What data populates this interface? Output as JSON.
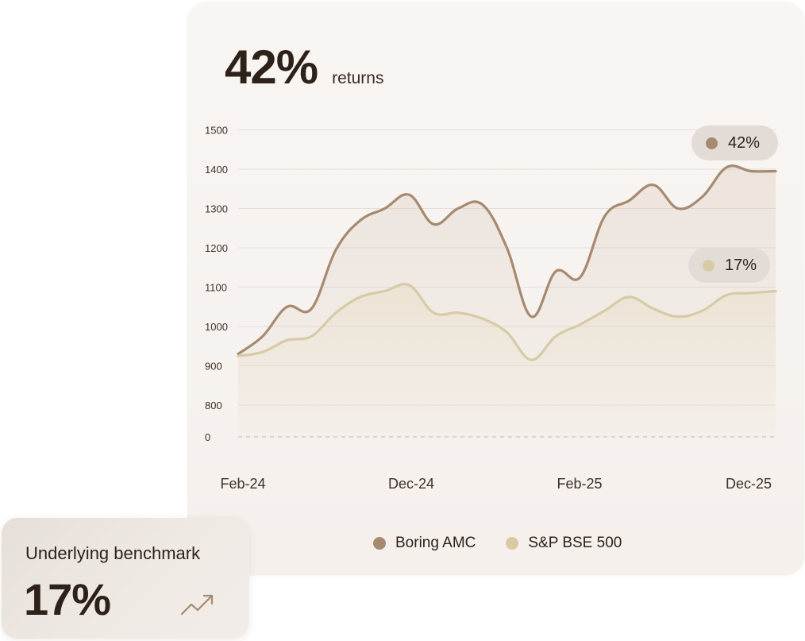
{
  "headline": {
    "value": "42%",
    "label": "returns"
  },
  "colors": {
    "amc": "#a68a70",
    "benchmark": "#d6cba6",
    "grid": "#e6dfd8",
    "text": "#2e2119"
  },
  "chart_data": {
    "type": "line",
    "x": [
      "Feb-24",
      "",
      "",
      "",
      "",
      "",
      "",
      "",
      "",
      "",
      "Dec-24",
      "",
      "Feb-25",
      "",
      "",
      "",
      "",
      "",
      "",
      "",
      "",
      "",
      "Dec-25"
    ],
    "x_tick_labels": [
      "Feb-24",
      "Dec-24",
      "Feb-25",
      "Dec-25"
    ],
    "y_tick_labels": [
      "0",
      "800",
      "900",
      "1000",
      "1100",
      "1200",
      "1300",
      "1400",
      "1500"
    ],
    "y_axis_break": true,
    "ylim": [
      800,
      1500
    ],
    "grid": true,
    "legend_position": "bottom-center",
    "series": [
      {
        "name": "Boring AMC",
        "end_label": "42%",
        "values": [
          930,
          975,
          1050,
          1045,
          1195,
          1270,
          1300,
          1335,
          1260,
          1300,
          1310,
          1200,
          1025,
          1140,
          1125,
          1280,
          1320,
          1360,
          1300,
          1330,
          1405,
          1395,
          1395
        ]
      },
      {
        "name": "S&P BSE 500",
        "end_label": "17%",
        "values": [
          925,
          935,
          965,
          975,
          1035,
          1075,
          1090,
          1105,
          1035,
          1035,
          1020,
          985,
          915,
          975,
          1005,
          1040,
          1075,
          1045,
          1025,
          1040,
          1080,
          1085,
          1090
        ]
      }
    ]
  },
  "benchmark_card": {
    "title": "Underlying benchmark",
    "value": "17%",
    "icon": "trend-up-icon"
  }
}
